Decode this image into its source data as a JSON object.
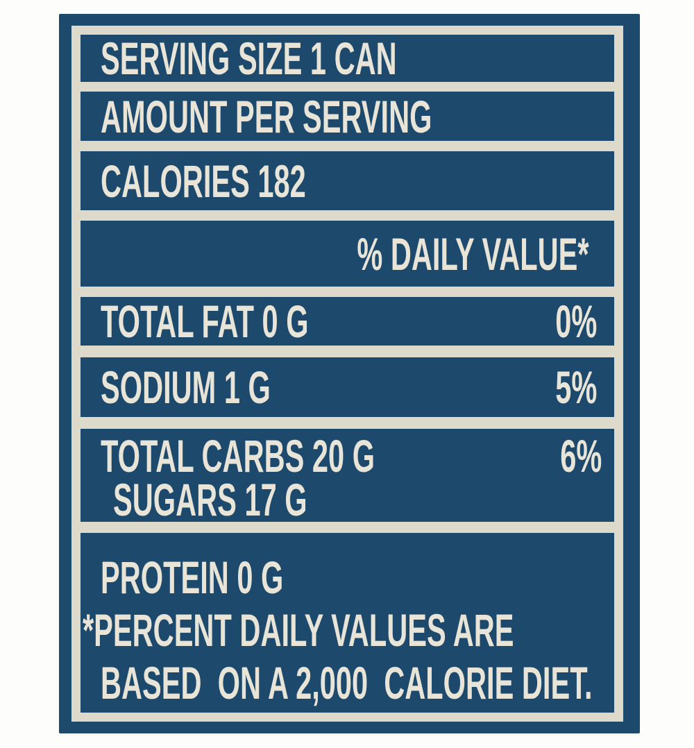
{
  "label": {
    "title": "nutrition-panel",
    "rows": [
      {
        "name": "serving-size",
        "text": "SERVING SIZE 1 CAN"
      },
      {
        "name": "amount-per-serving",
        "text": "AMOUNT PER SERVING"
      },
      {
        "name": "calories",
        "text": "CALORIES 182"
      },
      {
        "name": "daily-value-header",
        "text": "% DAILY VALUE*"
      },
      {
        "name": "total-fat",
        "text": "TOTAL FAT 0 G",
        "percent": "0%"
      },
      {
        "name": "sodium",
        "text": "SODIUM 1 G",
        "percent": "5%"
      },
      {
        "name": "total-carbs",
        "text": "TOTAL CARBS 20 G",
        "percent": "6%",
        "subtext": "SUGARS 17 G"
      },
      {
        "name": "protein",
        "text": "PROTEIN 0 G",
        "footnote_line1": "*PERCENT DAILY VALUES ARE",
        "footnote_line2": "BASED  ON A 2,000  CALORIE DIET."
      }
    ],
    "colors": {
      "panel_blue": "#1d4a6c",
      "frame_cream": "#ddd9cb",
      "text_cream": "#e8e4d7",
      "page_bg": "#fdfdfc"
    }
  }
}
